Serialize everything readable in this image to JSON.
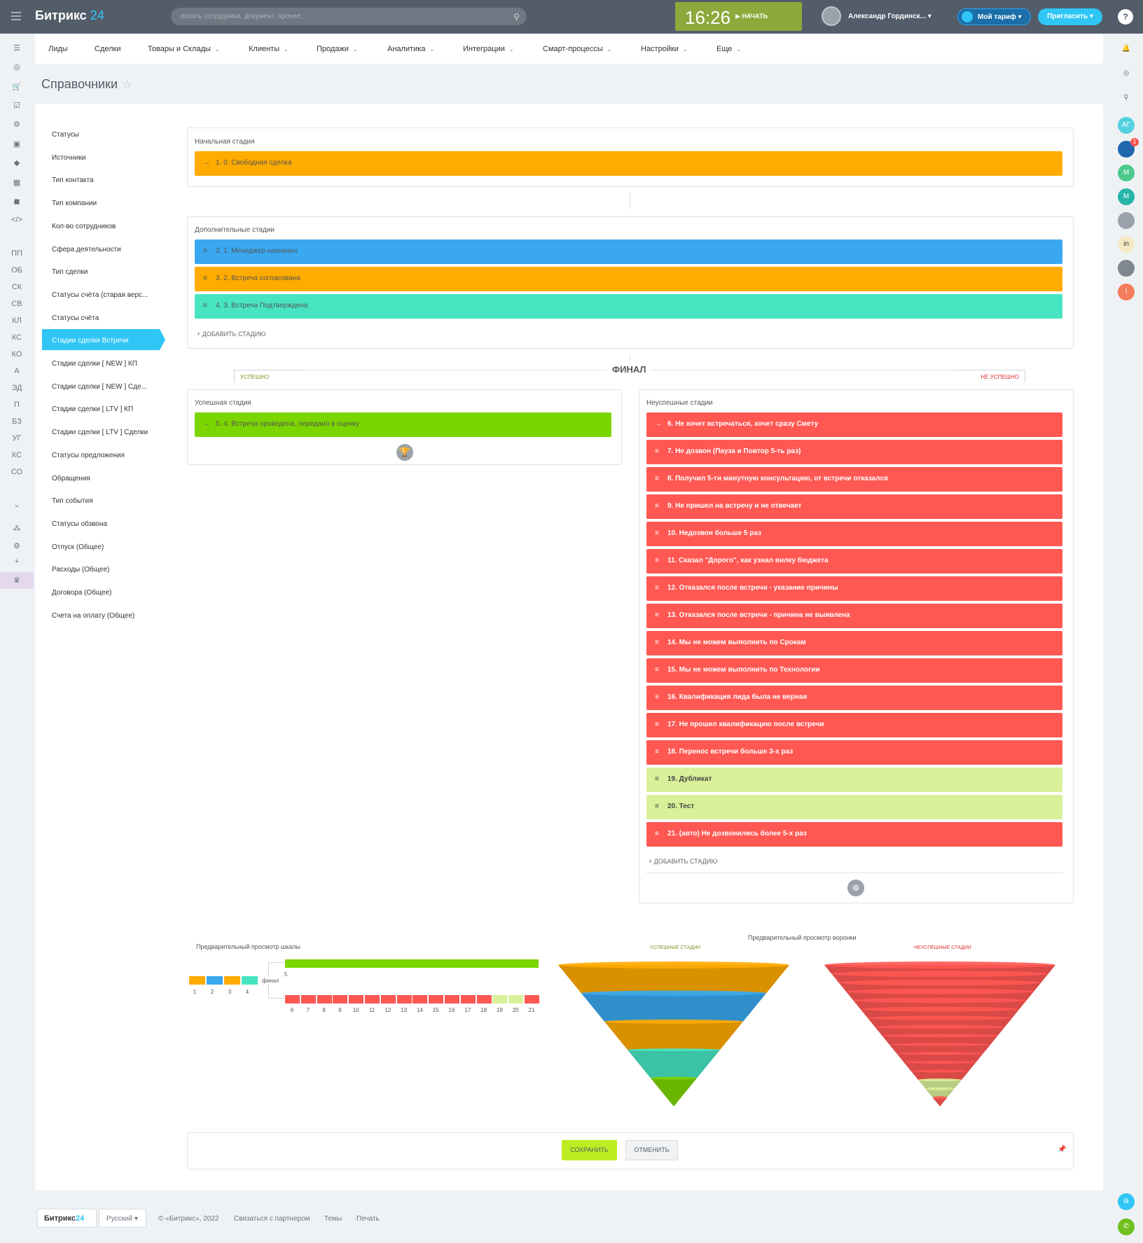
{
  "header": {
    "logo_main": "Битрикс",
    "logo_num": "24",
    "search_placeholder": "искать сотрудника, документ, прочее...",
    "time": "16:26",
    "start_label": "НАЧАТЬ",
    "user_name": "Александр Гординск...",
    "tarif_label": "Мой тариф",
    "invite_label": "Пригласить",
    "help": "?"
  },
  "left_bar": {
    "text_items": [
      "ПП",
      "ОБ",
      "СК",
      "СВ",
      "КЛ",
      "КС",
      "КО",
      "А",
      "ЭД",
      "П",
      "БЗ",
      "УГ",
      "КС",
      "СО"
    ]
  },
  "right_bar": {
    "avatars": [
      {
        "label": "АГ",
        "color": "#55d0e0"
      },
      {
        "label": "",
        "color": "#2067b0"
      },
      {
        "label": "М",
        "color": "#4ec98d"
      },
      {
        "label": "М",
        "color": "#28b5a8"
      },
      {
        "label": "",
        "color": "#9aa2ab"
      },
      {
        "label": "in",
        "color": "#f4e8c4"
      },
      {
        "label": "",
        "color": "#7f8790"
      },
      {
        "label": "I",
        "color": "#f37c5a"
      }
    ],
    "badge": "1"
  },
  "menu": {
    "items": [
      {
        "label": "Лиды",
        "arrow": ""
      },
      {
        "label": "Сделки",
        "arrow": ""
      },
      {
        "label": "Товары и Склады",
        "arrow": "⌄"
      },
      {
        "label": "Клиенты",
        "arrow": "⌄"
      },
      {
        "label": "Продажи",
        "arrow": "⌄"
      },
      {
        "label": "Аналитика",
        "arrow": "⌄"
      },
      {
        "label": "Интеграции",
        "arrow": "⌄"
      },
      {
        "label": "Смарт-процессы",
        "arrow": "⌄"
      },
      {
        "label": "Настройки",
        "arrow": "⌄"
      },
      {
        "label": "Еще",
        "arrow": "⌄"
      }
    ]
  },
  "page": {
    "title": "Справочники"
  },
  "sidenav": {
    "items": [
      "Статусы",
      "Источники",
      "Тип контакта",
      "Тип компании",
      "Кол-во сотрудников",
      "Сфера деятельности",
      "Тип сделки",
      "Статусы счёта (старая верс...",
      "Статусы счёта",
      "Стадии сделки Встречи",
      "Стадии сделки [ NEW ] КП",
      "Стадии сделки [ NEW ] Сде...",
      "Стадии сделки [ LTV ] КП",
      "Стадии сделки [ LTV ] Сделки",
      "Статусы предложения",
      "Обращения",
      "Тип события",
      "Статусы обзвона",
      "Отпуск (Общее)",
      "Расходы (Общее)",
      "Договора (Общее)",
      "Счета на оплату (Общее)"
    ],
    "active_index": 9
  },
  "initial": {
    "label": "Начальная стадия",
    "stage": {
      "text": "1. 0. Свободная сделка",
      "color": "#ffab00"
    }
  },
  "additional": {
    "label": "Дополнительные стадии",
    "stages": [
      {
        "text": "2. 1. Менеджер назначен",
        "color": "#39a8ef"
      },
      {
        "text": "3. 2. Встреча согласована",
        "color": "#ffab00"
      },
      {
        "text": "4. 3. Встреча Подтверждена",
        "color": "#47e4c2"
      }
    ],
    "add_label": "+ ДОБАВИТЬ СТАДИЮ"
  },
  "final": {
    "title": "ФИНАЛ",
    "success_tab": "УСПЕШНО",
    "fail_tab": "НЕ УСПЕШНО",
    "success_label": "Успешная стадия",
    "success_stage": {
      "text": "5. 4. Встреча проведена, передано в оценку",
      "color": "#7bd500"
    },
    "fail_label": "Неуспешные стадии",
    "fail_stages": [
      {
        "text": "6. Не хочет встречаться, хочет сразу Смету",
        "color": "#ff5752",
        "icon": "→"
      },
      {
        "text": "7. Не дозвон (Пауза и Повтор 5-ть раз)",
        "color": "#ff5752",
        "icon": "≡"
      },
      {
        "text": "8. Получил 5-ти минутную консультацию, от встречи отказался",
        "color": "#ff5752",
        "icon": "≡"
      },
      {
        "text": "9. Не пришел на встречу и не отвечает",
        "color": "#ff5752",
        "icon": "≡"
      },
      {
        "text": "10. Недозвон больше 5 раз",
        "color": "#ff5752",
        "icon": "≡"
      },
      {
        "text": "11. Сказал \"Дорого\", как узнал вилку бюджета",
        "color": "#ff5752",
        "icon": "≡"
      },
      {
        "text": "12. Отказался после встречи - указание причины",
        "color": "#ff5752",
        "icon": "≡"
      },
      {
        "text": "13. Отказался после встречи - причина не выявлена",
        "color": "#ff5752",
        "icon": "≡"
      },
      {
        "text": "14. Мы не можем выполнить по Срокам",
        "color": "#ff5752",
        "icon": "≡"
      },
      {
        "text": "15. Мы не можем выполнить по Технологии",
        "color": "#ff5752",
        "icon": "≡"
      },
      {
        "text": "16. Квалификация лида была не верная",
        "color": "#ff5752",
        "icon": "≡"
      },
      {
        "text": "17. Не прошел квалификацию после встречи",
        "color": "#ff5752",
        "icon": "≡"
      },
      {
        "text": "18. Перенос встречи больше 3-х раз",
        "color": "#ff5752",
        "icon": "≡"
      },
      {
        "text": "19. Дубликат",
        "color": "#d9f09a",
        "icon": "≡"
      },
      {
        "text": "20. Тест",
        "color": "#d9f09a",
        "icon": "≡"
      },
      {
        "text": "21. (авто) Не дозвонились более 5-х раз",
        "color": "#ff5752",
        "icon": "≡"
      }
    ],
    "add_label": "+ ДОБАВИТЬ СТАДИЮ"
  },
  "preview": {
    "scale_label": "Предварительный просмотр шкалы",
    "funnel_label": "Предварительный просмотр воронки",
    "funnel_success": "УСПЕШНЫЕ СТАДИИ",
    "funnel_fail": "НЕУСПЕШНЫЕ СТАДИИ",
    "final_label": "финал",
    "scale_left": [
      {
        "n": "1",
        "color": "#ffab00"
      },
      {
        "n": "2",
        "color": "#39a8ef"
      },
      {
        "n": "3",
        "color": "#ffab00"
      },
      {
        "n": "4",
        "color": "#47e4c2"
      }
    ],
    "scale_success": {
      "n": "5",
      "color": "#7bd500"
    },
    "scale_fail": [
      {
        "n": "6",
        "color": "#ff5752"
      },
      {
        "n": "7",
        "color": "#ff5752"
      },
      {
        "n": "8",
        "color": "#ff5752"
      },
      {
        "n": "9",
        "color": "#ff5752"
      },
      {
        "n": "10",
        "color": "#ff5752"
      },
      {
        "n": "11",
        "color": "#ff5752"
      },
      {
        "n": "12",
        "color": "#ff5752"
      },
      {
        "n": "13",
        "color": "#ff5752"
      },
      {
        "n": "14",
        "color": "#ff5752"
      },
      {
        "n": "15",
        "color": "#ff5752"
      },
      {
        "n": "16",
        "color": "#ff5752"
      },
      {
        "n": "17",
        "color": "#ff5752"
      },
      {
        "n": "18",
        "color": "#ff5752"
      },
      {
        "n": "19",
        "color": "#d9f09a"
      },
      {
        "n": "20",
        "color": "#d9f09a"
      },
      {
        "n": "21",
        "color": "#ff5752"
      }
    ],
    "funnel_success_colors": [
      "#ffab00",
      "#39a8ef",
      "#ffab00",
      "#47e4c2",
      "#7bd500"
    ],
    "funnel_fail_colors": [
      "#ff5752",
      "#ff5752",
      "#ff5752",
      "#ff5752",
      "#ff5752",
      "#ff5752",
      "#ff5752",
      "#ff5752",
      "#ff5752",
      "#ff5752",
      "#ff5752",
      "#ff5752",
      "#ff5752",
      "#d9f09a",
      "#d9f09a",
      "#ff5752"
    ]
  },
  "buttons": {
    "save": "СОХРАНИТЬ",
    "cancel": "ОТМЕНИТЬ"
  },
  "footer": {
    "logo_main": "Битрикс",
    "logo_num": "24",
    "lang": "Русский",
    "copyright": "© «Битрикс», 2022",
    "partner": "Связаться с партнером",
    "themes": "Темы",
    "print": "Печать"
  }
}
